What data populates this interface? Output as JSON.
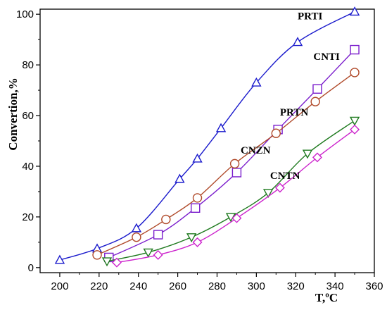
{
  "chart_data": {
    "type": "line",
    "title": "",
    "xlabel": "T,ºC",
    "ylabel": "Convertion,%",
    "xlim": [
      190,
      360
    ],
    "ylim": [
      -2,
      102
    ],
    "xticks": [
      200,
      220,
      240,
      260,
      280,
      300,
      320,
      340,
      360
    ],
    "yticks": [
      0,
      20,
      40,
      60,
      80,
      100
    ],
    "grid": false,
    "legend": "inline labels",
    "series": [
      {
        "name": "PRTI",
        "color": "#1a1acc",
        "marker": "triangle-up",
        "x": [
          200,
          219,
          239,
          261,
          270,
          282,
          300,
          321,
          350
        ],
        "y": [
          3,
          7.5,
          15.5,
          35,
          43,
          55,
          73,
          89,
          101
        ]
      },
      {
        "name": "CNTI",
        "color": "#7a1ccc",
        "marker": "square",
        "x": [
          225,
          250,
          269,
          290,
          311,
          331,
          350
        ],
        "y": [
          4,
          13,
          23.5,
          37.5,
          54.5,
          70.5,
          86
        ]
      },
      {
        "name": "PRTN",
        "color": "#b04a2a",
        "marker": "circle",
        "x": [
          219,
          239,
          254,
          270,
          289,
          310,
          330,
          350
        ],
        "y": [
          5,
          12,
          19,
          27.5,
          41,
          53,
          65.5,
          77
        ]
      },
      {
        "name": "CNZN",
        "color": "#1f7a1f",
        "marker": "triangle-down",
        "x": [
          224,
          245,
          267,
          287,
          306,
          326,
          350
        ],
        "y": [
          2.5,
          6,
          12,
          20,
          29.5,
          45,
          58
        ]
      },
      {
        "name": "CNTN",
        "color": "#cc22cc",
        "marker": "diamond",
        "x": [
          229,
          250,
          270,
          290,
          312,
          331,
          350
        ],
        "y": [
          2,
          5,
          10,
          19.5,
          31.5,
          43.5,
          54.5
        ]
      }
    ],
    "labels": [
      {
        "text": "PRTI",
        "x": 321,
        "y": 98
      },
      {
        "text": "CNTI",
        "x": 329,
        "y": 82
      },
      {
        "text": "PRTN",
        "x": 312,
        "y": 60
      },
      {
        "text": "CNZN",
        "x": 292,
        "y": 45
      },
      {
        "text": "CNTN",
        "x": 307,
        "y": 35
      }
    ]
  }
}
